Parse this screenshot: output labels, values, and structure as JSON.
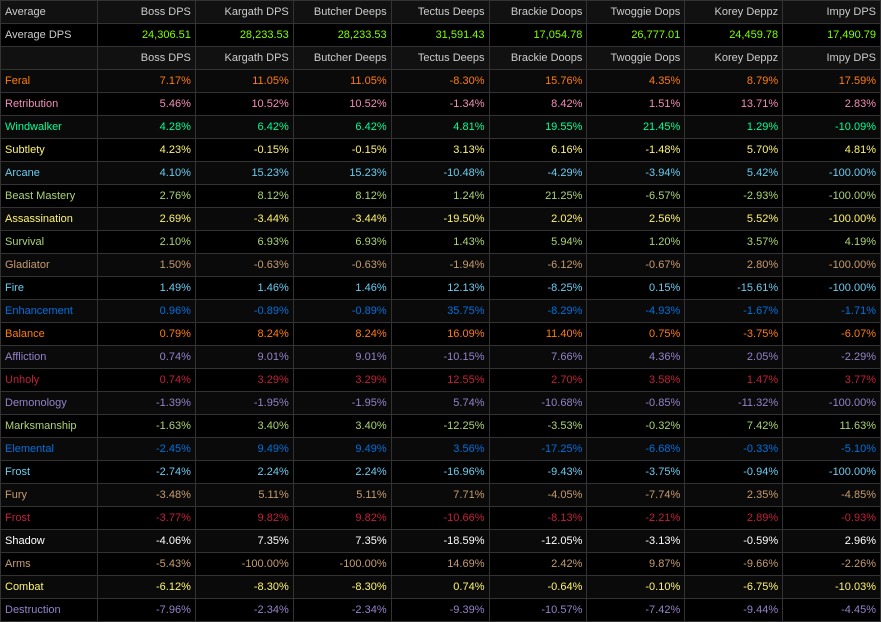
{
  "headers1": [
    "Average",
    "Boss DPS",
    "Kargath DPS",
    "Butcher Deeps",
    "Tectus Deeps",
    "Brackie Doops",
    "Twoggie Dops",
    "Korey Deppz",
    "Impy DPS"
  ],
  "avg_label": "Average DPS",
  "avg_row": [
    "24,306.51",
    "28,233.53",
    "28,233.53",
    "31,591.43",
    "17,054.78",
    "26,777.01",
    "24,459.78",
    "17,490.79"
  ],
  "headers2": [
    "",
    "Boss DPS",
    "Kargath DPS",
    "Butcher Deeps",
    "Tectus Deeps",
    "Brackie Doops",
    "Twoggie Dops",
    "Korey Deppz",
    "Impy DPS"
  ],
  "rows": [
    {
      "spec": "Feral",
      "color": "#ff7d0a",
      "v": [
        "7.17%",
        "11.05%",
        "11.05%",
        "-8.30%",
        "15.76%",
        "4.35%",
        "8.79%",
        "17.59%"
      ]
    },
    {
      "spec": "Retribution",
      "color": "#f58cba",
      "v": [
        "5.46%",
        "10.52%",
        "10.52%",
        "-1.34%",
        "8.42%",
        "1.51%",
        "13.71%",
        "2.83%"
      ]
    },
    {
      "spec": "Windwalker",
      "color": "#00ff96",
      "v": [
        "4.28%",
        "6.42%",
        "6.42%",
        "4.81%",
        "19.55%",
        "21.45%",
        "1.29%",
        "-10.09%"
      ]
    },
    {
      "spec": "Subtlety",
      "color": "#fff569",
      "v": [
        "4.23%",
        "-0.15%",
        "-0.15%",
        "3.13%",
        "6.16%",
        "-1.48%",
        "5.70%",
        "4.81%"
      ]
    },
    {
      "spec": "Arcane",
      "color": "#69ccf0",
      "v": [
        "4.10%",
        "15.23%",
        "15.23%",
        "-10.48%",
        "-4.29%",
        "-3.94%",
        "5.42%",
        "-100.00%"
      ]
    },
    {
      "spec": "Beast Mastery",
      "color": "#abd473",
      "v": [
        "2.76%",
        "8.12%",
        "8.12%",
        "1.24%",
        "21.25%",
        "-6.57%",
        "-2.93%",
        "-100.00%"
      ]
    },
    {
      "spec": "Assassination",
      "color": "#fff569",
      "v": [
        "2.69%",
        "-3.44%",
        "-3.44%",
        "-19.50%",
        "2.02%",
        "2.56%",
        "5.52%",
        "-100.00%"
      ]
    },
    {
      "spec": "Survival",
      "color": "#abd473",
      "v": [
        "2.10%",
        "6.93%",
        "6.93%",
        "1.43%",
        "5.94%",
        "1.20%",
        "3.57%",
        "4.19%"
      ]
    },
    {
      "spec": "Gladiator",
      "color": "#c79c6e",
      "v": [
        "1.50%",
        "-0.63%",
        "-0.63%",
        "-1.94%",
        "-6.12%",
        "-0.67%",
        "2.80%",
        "-100.00%"
      ]
    },
    {
      "spec": "Fire",
      "color": "#69ccf0",
      "v": [
        "1.49%",
        "1.46%",
        "1.46%",
        "12.13%",
        "-8.25%",
        "0.15%",
        "-15.61%",
        "-100.00%"
      ]
    },
    {
      "spec": "Enhancement",
      "color": "#0070de",
      "v": [
        "0.96%",
        "-0.89%",
        "-0.89%",
        "35.75%",
        "-8.29%",
        "-4.93%",
        "-1.67%",
        "-1.71%"
      ]
    },
    {
      "spec": "Balance",
      "color": "#ff7d0a",
      "v": [
        "0.79%",
        "8.24%",
        "8.24%",
        "16.09%",
        "11.40%",
        "0.75%",
        "-3.75%",
        "-6.07%"
      ]
    },
    {
      "spec": "Affliction",
      "color": "#9482c9",
      "v": [
        "0.74%",
        "9.01%",
        "9.01%",
        "-10.15%",
        "7.66%",
        "4.36%",
        "2.05%",
        "-2.29%"
      ]
    },
    {
      "spec": "Unholy",
      "color": "#c41f3b",
      "v": [
        "0.74%",
        "3.29%",
        "3.29%",
        "12.55%",
        "2.70%",
        "3.58%",
        "1.47%",
        "3.77%"
      ]
    },
    {
      "spec": "Demonology",
      "color": "#9482c9",
      "v": [
        "-1.39%",
        "-1.95%",
        "-1.95%",
        "5.74%",
        "-10.68%",
        "-0.85%",
        "-11.32%",
        "-100.00%"
      ]
    },
    {
      "spec": "Marksmanship",
      "color": "#abd473",
      "v": [
        "-1.63%",
        "3.40%",
        "3.40%",
        "-12.25%",
        "-3.53%",
        "-0.32%",
        "7.42%",
        "11.63%"
      ]
    },
    {
      "spec": "Elemental",
      "color": "#0070de",
      "v": [
        "-2.45%",
        "9.49%",
        "9.49%",
        "3.56%",
        "-17.25%",
        "-6.68%",
        "-0.33%",
        "-5.10%"
      ]
    },
    {
      "spec": "Frost",
      "color": "#69ccf0",
      "v": [
        "-2.74%",
        "2.24%",
        "2.24%",
        "-16.96%",
        "-9.43%",
        "-3.75%",
        "-0.94%",
        "-100.00%"
      ]
    },
    {
      "spec": "Fury",
      "color": "#c79c6e",
      "v": [
        "-3.48%",
        "5.11%",
        "5.11%",
        "7.71%",
        "-4.05%",
        "-7.74%",
        "2.35%",
        "-4.85%"
      ]
    },
    {
      "spec": "Frost",
      "color": "#c41f3b",
      "v": [
        "-3.77%",
        "9.82%",
        "9.82%",
        "-10.66%",
        "-8.13%",
        "-2.21%",
        "2.89%",
        "-0.93%"
      ]
    },
    {
      "spec": "Shadow",
      "color": "#ffffff",
      "v": [
        "-4.06%",
        "7.35%",
        "7.35%",
        "-18.59%",
        "-12.05%",
        "-3.13%",
        "-0.59%",
        "2.96%"
      ]
    },
    {
      "spec": "Arms",
      "color": "#c79c6e",
      "v": [
        "-5.43%",
        "-100.00%",
        "-100.00%",
        "14.69%",
        "2.42%",
        "9.87%",
        "-9.66%",
        "-2.26%"
      ]
    },
    {
      "spec": "Combat",
      "color": "#fff569",
      "v": [
        "-6.12%",
        "-8.30%",
        "-8.30%",
        "0.74%",
        "-0.64%",
        "-0.10%",
        "-6.75%",
        "-10.03%"
      ]
    },
    {
      "spec": "Destruction",
      "color": "#9482c9",
      "v": [
        "-7.96%",
        "-2.34%",
        "-2.34%",
        "-9.39%",
        "-10.57%",
        "-7.42%",
        "-9.44%",
        "-4.45%"
      ]
    }
  ]
}
